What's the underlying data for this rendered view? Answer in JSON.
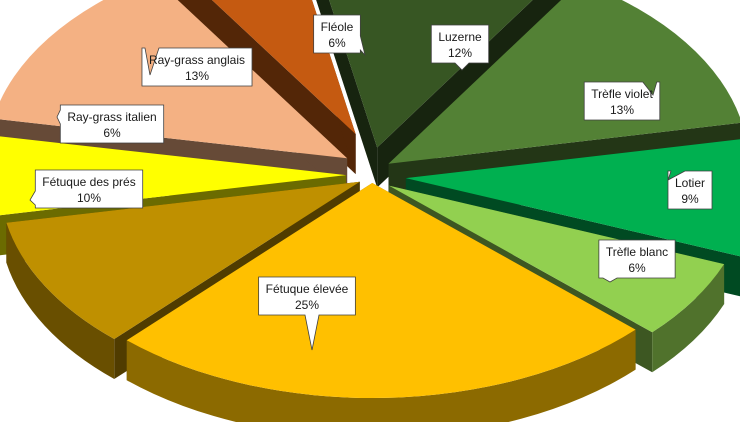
{
  "chart_data": {
    "type": "pie",
    "title": "",
    "style": "3d-exploded-with-callouts",
    "legend": "none",
    "slices": [
      {
        "label": "Luzerne",
        "value": 12,
        "display": "12%",
        "color": "#375623"
      },
      {
        "label": "Trèfle violet",
        "value": 13,
        "display": "13%",
        "color": "#538135"
      },
      {
        "label": "Lotier",
        "value": 9,
        "display": "9%",
        "color": "#00b050"
      },
      {
        "label": "Trèfle blanc",
        "value": 6,
        "display": "6%",
        "color": "#92d050"
      },
      {
        "label": "Fétuque élevée",
        "value": 25,
        "display": "25%",
        "color": "#ffc000"
      },
      {
        "label": "Fétuque des prés",
        "value": 10,
        "display": "10%",
        "color": "#bf9000"
      },
      {
        "label": "Ray-grass italien",
        "value": 6,
        "display": "6%",
        "color": "#ffff00"
      },
      {
        "label": "Ray-grass anglais",
        "value": 13,
        "display": "13%",
        "color": "#f4b183"
      },
      {
        "label": "Fléole",
        "value": 6,
        "display": "6%",
        "color": "#c55a11"
      }
    ]
  }
}
